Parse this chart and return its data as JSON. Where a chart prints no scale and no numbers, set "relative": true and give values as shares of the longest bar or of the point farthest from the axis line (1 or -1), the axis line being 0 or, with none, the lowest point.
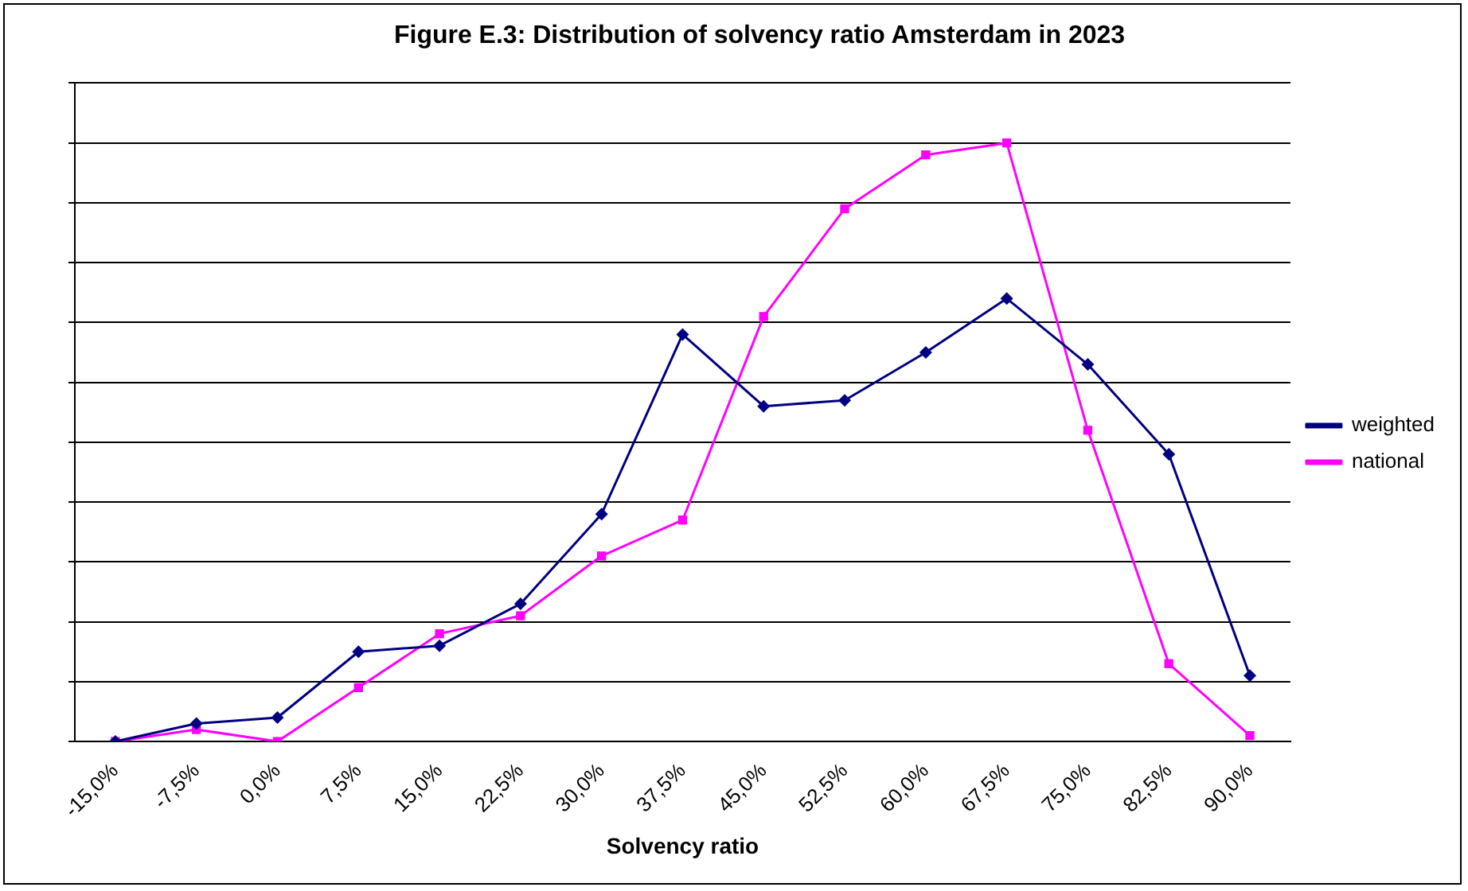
{
  "chart_data": {
    "type": "line",
    "title": "Figure E.3: Distribution of solvency ratio Amsterdam in 2023",
    "xlabel": "Solvency ratio",
    "categories": [
      "-15,0%",
      "-7,5%",
      "0,0%",
      "7,5%",
      "15,0%",
      "22,5%",
      "30,0%",
      "37,5%",
      "45,0%",
      "52,5%",
      "60,0%",
      "67,5%",
      "75,0%",
      "82,5%",
      "90,0%"
    ],
    "relative": true,
    "grid": "y",
    "legend": "right",
    "line_style": "solid",
    "series": [
      {
        "name": "weighted",
        "color": "#000080",
        "marker": "diamond",
        "values": [
          0,
          0.03,
          0.04,
          0.15,
          0.16,
          0.23,
          0.38,
          0.68,
          0.56,
          0.57,
          0.65,
          0.74,
          0.63,
          0.48,
          0.11
        ]
      },
      {
        "name": "national",
        "color": "#ff00ff",
        "marker": "square",
        "values": [
          0,
          0.02,
          0,
          0.09,
          0.18,
          0.21,
          0.31,
          0.37,
          0.71,
          0.89,
          0.98,
          1,
          0.52,
          0.13,
          0.01
        ]
      }
    ]
  }
}
